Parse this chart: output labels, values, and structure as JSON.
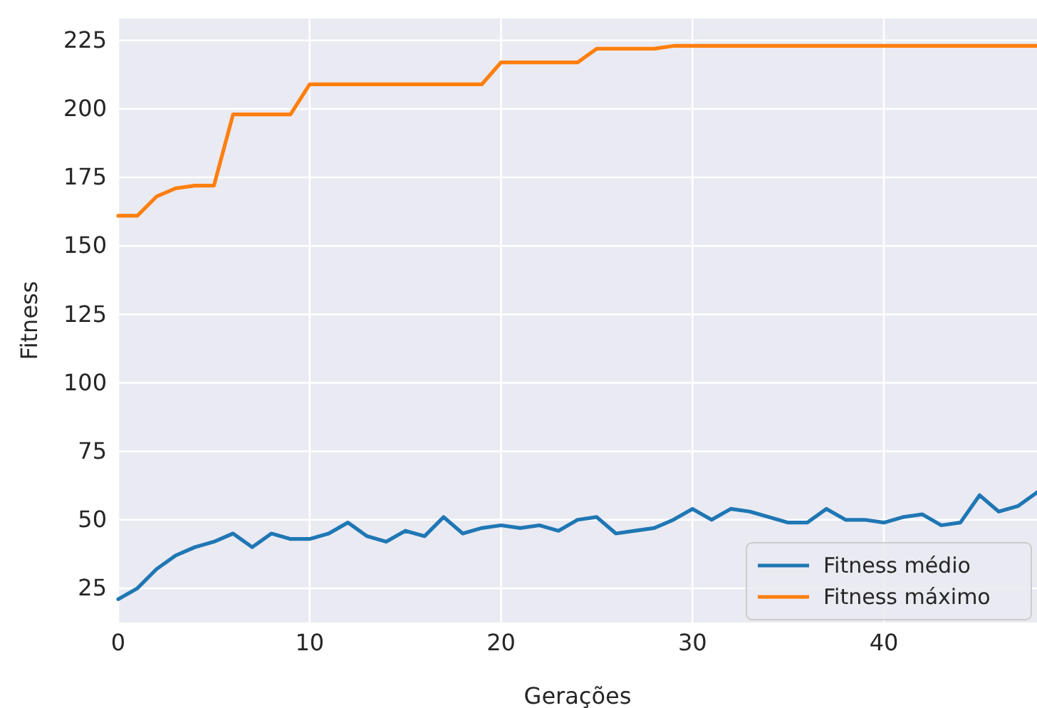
{
  "chart_data": {
    "type": "line",
    "xlabel": "Gerações",
    "ylabel": "Fitness",
    "xlim": [
      0,
      48
    ],
    "xticks": [
      0,
      10,
      20,
      30,
      40
    ],
    "ylim": [
      12.5,
      233
    ],
    "yticks": [
      25,
      50,
      75,
      100,
      125,
      150,
      175,
      200,
      225
    ],
    "grid": true,
    "legend": "bottom right",
    "x": [
      0,
      1,
      2,
      3,
      4,
      5,
      6,
      7,
      8,
      9,
      10,
      11,
      12,
      13,
      14,
      15,
      16,
      17,
      18,
      19,
      20,
      21,
      22,
      23,
      24,
      25,
      26,
      27,
      28,
      29,
      30,
      31,
      32,
      33,
      34,
      35,
      36,
      37,
      38,
      39,
      40,
      41,
      42,
      43,
      44,
      45,
      46,
      47,
      48
    ],
    "series": [
      {
        "name": "Fitness médio",
        "color": "#1f77b4",
        "values": [
          21,
          25,
          32,
          37,
          40,
          42,
          45,
          40,
          45,
          43,
          43,
          45,
          49,
          44,
          42,
          46,
          44,
          51,
          45,
          47,
          48,
          47,
          48,
          46,
          50,
          51,
          45,
          46,
          47,
          50,
          54,
          50,
          54,
          53,
          51,
          49,
          49,
          54,
          50,
          50,
          49,
          51,
          52,
          48,
          49,
          59,
          53,
          55,
          60
        ]
      },
      {
        "name": "Fitness máximo",
        "color": "#ff7f0e",
        "values": [
          161,
          161,
          168,
          171,
          172,
          172,
          198,
          198,
          198,
          198,
          209,
          209,
          209,
          209,
          209,
          209,
          209,
          209,
          209,
          209,
          217,
          217,
          217,
          217,
          217,
          222,
          222,
          222,
          222,
          223,
          223,
          223,
          223,
          223,
          223,
          223,
          223,
          223,
          223,
          223,
          223,
          223,
          223,
          223,
          223,
          223,
          223,
          223,
          223
        ]
      }
    ]
  }
}
